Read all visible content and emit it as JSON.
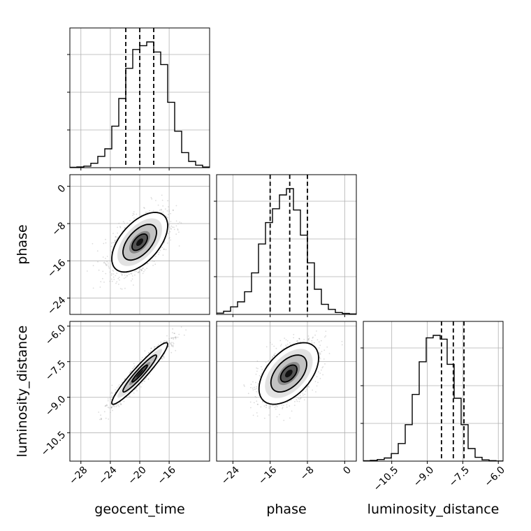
{
  "chart_data": {
    "type": "corner",
    "parameters": [
      "geocent_time",
      "phase",
      "luminosity_distance"
    ],
    "means": [
      -20,
      -12,
      -8
    ],
    "stds": [
      1.9,
      3.2,
      0.65
    ],
    "correlations": {
      "geocent_time_phase": 0.55,
      "geocent_time_luminosity_distance": 0.95,
      "phase_luminosity_distance": 0.5
    },
    "quantiles": {
      "geocent_time": [
        -21.9,
        -20.0,
        -18.1
      ],
      "phase": [
        -16.0,
        -11.8,
        -8.0
      ],
      "luminosity_distance": [
        -8.4,
        -7.9,
        -7.45
      ]
    },
    "ranges": {
      "geocent_time": [
        -29.5,
        -10.5
      ],
      "phase": [
        -27.5,
        2.5
      ],
      "luminosity_distance": [
        -11.7,
        -5.8
      ]
    },
    "ticks": {
      "geocent_time": [
        -28,
        -24,
        -20,
        -16
      ],
      "phase": [
        -24,
        -16,
        -8,
        0
      ],
      "luminosity_distance": [
        -10.5,
        -9.0,
        -7.5,
        -6.0
      ]
    },
    "tick_labels": {
      "geocent_time": [
        "−28",
        "−24",
        "−20",
        "−16"
      ],
      "phase": [
        "−24",
        "−16",
        "−8",
        "0"
      ],
      "luminosity_distance": [
        "−10.5",
        "−9.0",
        "−7.5",
        "−6.0"
      ]
    },
    "histograms": {
      "geocent_time": [
        0.003,
        0.006,
        0.012,
        0.035,
        0.09,
        0.15,
        0.33,
        0.55,
        0.79,
        0.94,
        0.97,
        1.0,
        0.92,
        0.82,
        0.52,
        0.29,
        0.12,
        0.05,
        0.02,
        0.005
      ],
      "phase": [
        0.01,
        0.025,
        0.06,
        0.1,
        0.18,
        0.33,
        0.56,
        0.73,
        0.84,
        0.95,
        1.0,
        0.83,
        0.63,
        0.41,
        0.2,
        0.08,
        0.04,
        0.015,
        0.008,
        0.004
      ],
      "luminosity_distance": [
        0.003,
        0.006,
        0.013,
        0.025,
        0.06,
        0.14,
        0.29,
        0.53,
        0.79,
        0.98,
        1.0,
        0.97,
        0.77,
        0.5,
        0.29,
        0.1,
        0.03,
        0.01,
        0.004,
        0.001
      ]
    },
    "grid": true,
    "contour_levels": [
      "inner",
      "middle",
      "outer"
    ]
  }
}
